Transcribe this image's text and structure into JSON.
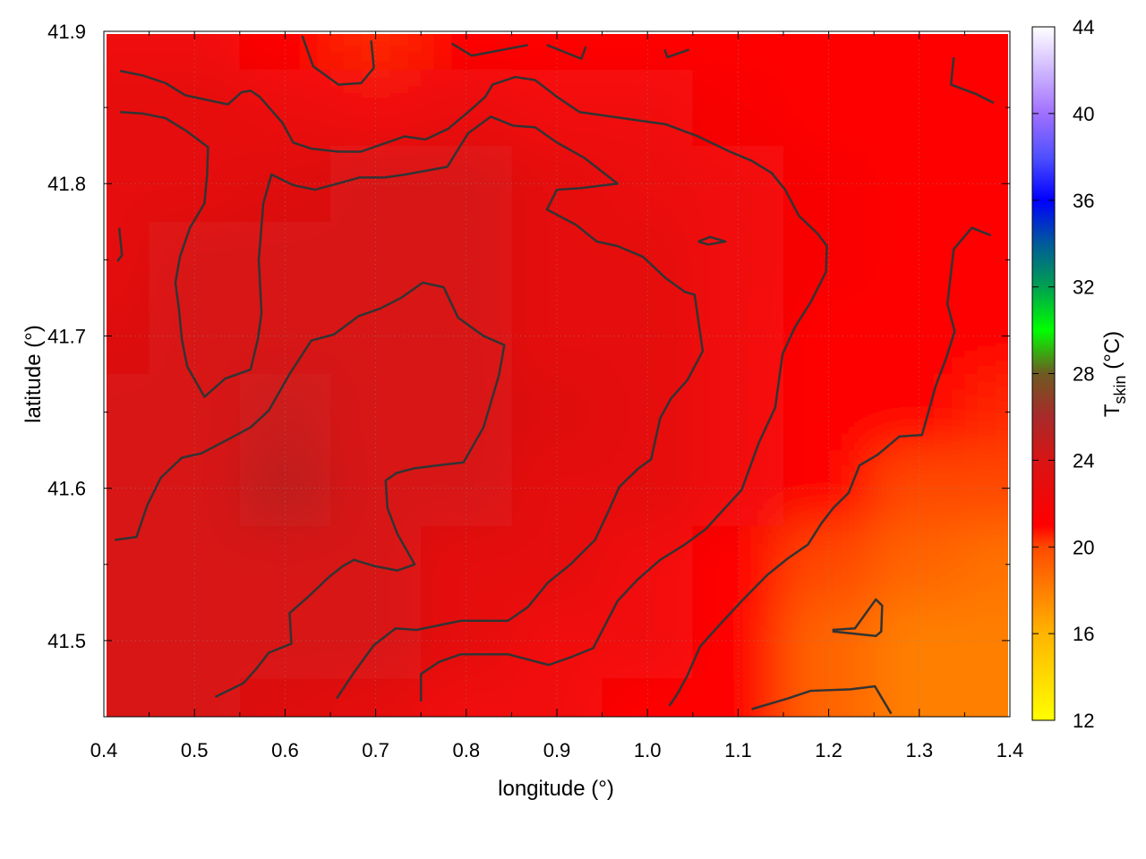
{
  "chart_data": {
    "type": "heatmap",
    "xlabel": "longitude (°)",
    "ylabel": "latitude (°)",
    "zlabel": {
      "main": "T",
      "sub": "skin",
      "unit": " (°C)"
    },
    "xlim": [
      0.4,
      1.4
    ],
    "ylim": [
      41.45,
      41.9
    ],
    "zlim": [
      12,
      44
    ],
    "grid": true,
    "xticks": [
      "0.4",
      "0.5",
      "0.6",
      "0.7",
      "0.8",
      "0.9",
      "1.0",
      "1.1",
      "1.2",
      "1.3",
      "1.4"
    ],
    "yticks": [
      "41.5",
      "41.6",
      "41.7",
      "41.8",
      "41.9"
    ],
    "zticks": [
      "12",
      "16",
      "20",
      "24",
      "28",
      "32",
      "36",
      "40",
      "44"
    ],
    "colormap": [
      [
        12,
        "#ffff00"
      ],
      [
        16,
        "#ffb400"
      ],
      [
        20,
        "#ff4a00"
      ],
      [
        21,
        "#ff0000"
      ],
      [
        24,
        "#d81414"
      ],
      [
        26,
        "#a82a2a"
      ],
      [
        28,
        "#6e5a22"
      ],
      [
        30,
        "#00ff00"
      ],
      [
        32,
        "#00a050"
      ],
      [
        34,
        "#005a9a"
      ],
      [
        36,
        "#0000ff"
      ],
      [
        38,
        "#5050ff"
      ],
      [
        40,
        "#a070ff"
      ],
      [
        44,
        "#ffffff"
      ]
    ],
    "contour_color": "#333333",
    "x": [
      0.4,
      0.5,
      0.6,
      0.7,
      0.8,
      0.9,
      1.0,
      1.1,
      1.2,
      1.3,
      1.4
    ],
    "y": [
      41.9,
      41.85,
      41.8,
      41.75,
      41.7,
      41.65,
      41.6,
      41.55,
      41.5,
      41.45
    ],
    "z": [
      [
        22,
        22,
        21,
        20.5,
        21,
        21,
        21,
        21,
        21,
        21,
        21
      ],
      [
        23,
        23,
        22.5,
        22,
        22.5,
        22,
        22,
        21.5,
        21,
        21,
        21
      ],
      [
        23,
        23,
        23.5,
        24,
        24,
        23,
        22.5,
        22,
        21.5,
        21,
        21
      ],
      [
        23,
        24,
        24,
        24,
        24,
        23,
        23,
        22,
        21.5,
        21,
        21
      ],
      [
        23.5,
        24,
        24,
        24,
        24,
        23,
        23,
        22,
        21,
        21,
        21
      ],
      [
        24,
        24,
        24.5,
        24,
        24,
        23.5,
        23,
        22,
        21,
        21,
        20.5
      ],
      [
        24,
        24,
        25,
        24,
        24,
        23,
        23,
        22,
        21,
        20,
        20
      ],
      [
        24,
        24,
        24,
        24,
        23,
        23,
        22,
        21,
        20,
        19,
        18.5
      ],
      [
        24,
        24,
        24,
        24,
        23,
        22,
        22,
        21,
        19,
        18,
        18
      ],
      [
        24,
        24,
        23.5,
        23,
        22,
        22,
        21,
        21,
        19,
        18,
        18
      ]
    ],
    "contours": [
      [
        [
          0.418,
          41.874
        ],
        [
          0.443,
          41.871
        ],
        [
          0.468,
          41.866
        ],
        [
          0.49,
          41.858
        ],
        [
          0.537,
          41.852
        ],
        [
          0.552,
          41.86
        ],
        [
          0.562,
          41.861
        ],
        [
          0.572,
          41.857
        ],
        [
          0.597,
          41.84
        ],
        [
          0.609,
          41.827
        ],
        [
          0.629,
          41.823
        ],
        [
          0.659,
          41.821
        ],
        [
          0.684,
          41.821
        ],
        [
          0.708,
          41.826
        ],
        [
          0.732,
          41.831
        ],
        [
          0.755,
          41.829
        ],
        [
          0.78,
          41.836
        ],
        [
          0.804,
          41.848
        ],
        [
          0.821,
          41.857
        ],
        [
          0.829,
          41.865
        ],
        [
          0.854,
          41.87
        ],
        [
          0.876,
          41.868
        ],
        [
          0.9,
          41.857
        ],
        [
          0.925,
          41.847
        ],
        [
          0.972,
          41.843
        ],
        [
          1.02,
          41.839
        ],
        [
          1.056,
          41.831
        ],
        [
          1.091,
          41.821
        ],
        [
          1.115,
          41.815
        ],
        [
          1.137,
          41.807
        ],
        [
          1.152,
          41.796
        ],
        [
          1.167,
          41.779
        ],
        [
          1.188,
          41.767
        ],
        [
          1.198,
          41.759
        ],
        [
          1.197,
          41.742
        ],
        [
          1.18,
          41.722
        ],
        [
          1.163,
          41.706
        ],
        [
          1.149,
          41.688
        ],
        [
          1.141,
          41.653
        ],
        [
          1.123,
          41.63
        ],
        [
          1.104,
          41.599
        ],
        [
          1.084,
          41.586
        ],
        [
          1.064,
          41.573
        ],
        [
          1.041,
          41.563
        ],
        [
          1.014,
          41.553
        ],
        [
          0.989,
          41.54
        ],
        [
          0.967,
          41.526
        ],
        [
          0.94,
          41.495
        ],
        [
          0.915,
          41.489
        ],
        [
          0.891,
          41.484
        ],
        [
          0.846,
          41.491
        ],
        [
          0.794,
          41.491
        ],
        [
          0.77,
          41.486
        ],
        [
          0.75,
          41.478
        ],
        [
          0.75,
          41.46
        ]
      ],
      [
        [
          0.418,
          41.847
        ],
        [
          0.443,
          41.846
        ],
        [
          0.468,
          41.843
        ],
        [
          0.49,
          41.835
        ],
        [
          0.515,
          41.824
        ],
        [
          0.514,
          41.806
        ],
        [
          0.511,
          41.787
        ],
        [
          0.495,
          41.771
        ],
        [
          0.484,
          41.752
        ],
        [
          0.479,
          41.735
        ],
        [
          0.483,
          41.717
        ],
        [
          0.486,
          41.698
        ],
        [
          0.492,
          41.68
        ],
        [
          0.511,
          41.66
        ],
        [
          0.534,
          41.672
        ],
        [
          0.562,
          41.678
        ],
        [
          0.57,
          41.698
        ],
        [
          0.574,
          41.715
        ],
        [
          0.571,
          41.75
        ],
        [
          0.576,
          41.787
        ],
        [
          0.585,
          41.806
        ],
        [
          0.609,
          41.799
        ],
        [
          0.633,
          41.796
        ],
        [
          0.658,
          41.8
        ],
        [
          0.682,
          41.804
        ],
        [
          0.71,
          41.804
        ],
        [
          0.733,
          41.806
        ],
        [
          0.779,
          41.811
        ],
        [
          0.802,
          41.833
        ],
        [
          0.827,
          41.844
        ],
        [
          0.852,
          41.838
        ],
        [
          0.876,
          41.837
        ],
        [
          0.9,
          41.827
        ],
        [
          0.93,
          41.817
        ],
        [
          0.967,
          41.8
        ],
        [
          0.925,
          41.797
        ],
        [
          0.9,
          41.796
        ],
        [
          0.889,
          41.783
        ],
        [
          0.921,
          41.773
        ],
        [
          0.944,
          41.762
        ],
        [
          0.967,
          41.759
        ],
        [
          0.995,
          41.752
        ],
        [
          1.02,
          41.738
        ],
        [
          1.041,
          41.729
        ],
        [
          1.052,
          41.727
        ],
        [
          1.061,
          41.69
        ],
        [
          1.044,
          41.671
        ],
        [
          1.026,
          41.659
        ],
        [
          1.014,
          41.646
        ],
        [
          1.004,
          41.619
        ],
        [
          0.99,
          41.613
        ],
        [
          0.969,
          41.601
        ],
        [
          0.957,
          41.585
        ],
        [
          0.942,
          41.566
        ],
        [
          0.915,
          41.55
        ],
        [
          0.89,
          41.538
        ],
        [
          0.868,
          41.522
        ],
        [
          0.846,
          41.513
        ],
        [
          0.794,
          41.513
        ],
        [
          0.745,
          41.507
        ],
        [
          0.722,
          41.508
        ],
        [
          0.698,
          41.497
        ],
        [
          0.676,
          41.479
        ],
        [
          0.657,
          41.462
        ]
      ],
      [
        [
          0.412,
          41.566
        ],
        [
          0.436,
          41.568
        ],
        [
          0.448,
          41.589
        ],
        [
          0.463,
          41.607
        ],
        [
          0.486,
          41.62
        ],
        [
          0.508,
          41.623
        ],
        [
          0.54,
          41.633
        ],
        [
          0.562,
          41.64
        ],
        [
          0.582,
          41.651
        ],
        [
          0.605,
          41.675
        ],
        [
          0.629,
          41.697
        ],
        [
          0.654,
          41.701
        ],
        [
          0.681,
          41.713
        ],
        [
          0.705,
          41.718
        ],
        [
          0.728,
          41.725
        ],
        [
          0.752,
          41.735
        ],
        [
          0.775,
          41.732
        ],
        [
          0.791,
          41.712
        ],
        [
          0.819,
          41.7
        ],
        [
          0.842,
          41.694
        ],
        [
          0.836,
          41.674
        ],
        [
          0.819,
          41.64
        ],
        [
          0.797,
          41.617
        ],
        [
          0.768,
          41.615
        ],
        [
          0.742,
          41.613
        ],
        [
          0.723,
          41.61
        ],
        [
          0.711,
          41.605
        ],
        [
          0.713,
          41.587
        ],
        [
          0.724,
          41.57
        ],
        [
          0.743,
          41.55
        ],
        [
          0.724,
          41.546
        ],
        [
          0.698,
          41.549
        ],
        [
          0.676,
          41.553
        ],
        [
          0.664,
          41.549
        ],
        [
          0.649,
          41.542
        ],
        [
          0.626,
          41.529
        ],
        [
          0.605,
          41.518
        ],
        [
          0.607,
          41.498
        ],
        [
          0.582,
          41.492
        ],
        [
          0.569,
          41.482
        ],
        [
          0.554,
          41.472
        ],
        [
          0.523,
          41.463
        ]
      ],
      [
        [
          1.379,
          41.766
        ],
        [
          1.358,
          41.771
        ],
        [
          1.338,
          41.757
        ],
        [
          1.331,
          41.721
        ],
        [
          1.339,
          41.703
        ],
        [
          1.33,
          41.686
        ],
        [
          1.318,
          41.667
        ],
        [
          1.303,
          41.635
        ],
        [
          1.278,
          41.634
        ],
        [
          1.254,
          41.622
        ],
        [
          1.234,
          41.615
        ],
        [
          1.222,
          41.597
        ],
        [
          1.205,
          41.587
        ],
        [
          1.192,
          41.577
        ],
        [
          1.177,
          41.563
        ],
        [
          1.155,
          41.554
        ],
        [
          1.132,
          41.543
        ],
        [
          1.104,
          41.526
        ],
        [
          1.076,
          41.508
        ],
        [
          1.058,
          41.496
        ],
        [
          1.044,
          41.477
        ],
        [
          1.033,
          41.465
        ],
        [
          1.024,
          41.457
        ]
      ],
      [
        [
          1.204,
          41.507
        ],
        [
          1.229,
          41.508
        ],
        [
          1.252,
          41.527
        ],
        [
          1.259,
          41.523
        ],
        [
          1.258,
          41.506
        ],
        [
          1.252,
          41.503
        ],
        [
          1.204,
          41.506
        ]
      ],
      [
        [
          1.115,
          41.455
        ],
        [
          1.155,
          41.462
        ],
        [
          1.18,
          41.467
        ],
        [
          1.224,
          41.468
        ],
        [
          1.251,
          41.47
        ],
        [
          1.269,
          41.452
        ]
      ],
      [
        [
          0.619,
          41.897
        ],
        [
          0.631,
          41.877
        ],
        [
          0.659,
          41.865
        ],
        [
          0.684,
          41.866
        ],
        [
          0.698,
          41.876
        ],
        [
          0.695,
          41.894
        ]
      ],
      [
        [
          0.784,
          41.892
        ],
        [
          0.806,
          41.884
        ],
        [
          0.868,
          41.891
        ]
      ],
      [
        [
          0.889,
          41.891
        ],
        [
          0.927,
          41.882
        ],
        [
          0.932,
          41.89
        ]
      ],
      [
        [
          1.019,
          41.888
        ],
        [
          1.022,
          41.883
        ],
        [
          1.046,
          41.888
        ]
      ],
      [
        [
          1.338,
          41.883
        ],
        [
          1.335,
          41.865
        ],
        [
          1.362,
          41.859
        ],
        [
          1.382,
          41.853
        ]
      ],
      [
        [
          0.417,
          41.771
        ],
        [
          0.42,
          41.753
        ],
        [
          0.415,
          41.749
        ]
      ],
      [
        [
          1.056,
          41.762
        ],
        [
          1.069,
          41.765
        ],
        [
          1.086,
          41.762
        ],
        [
          1.067,
          41.76
        ],
        [
          1.056,
          41.762
        ]
      ]
    ]
  }
}
